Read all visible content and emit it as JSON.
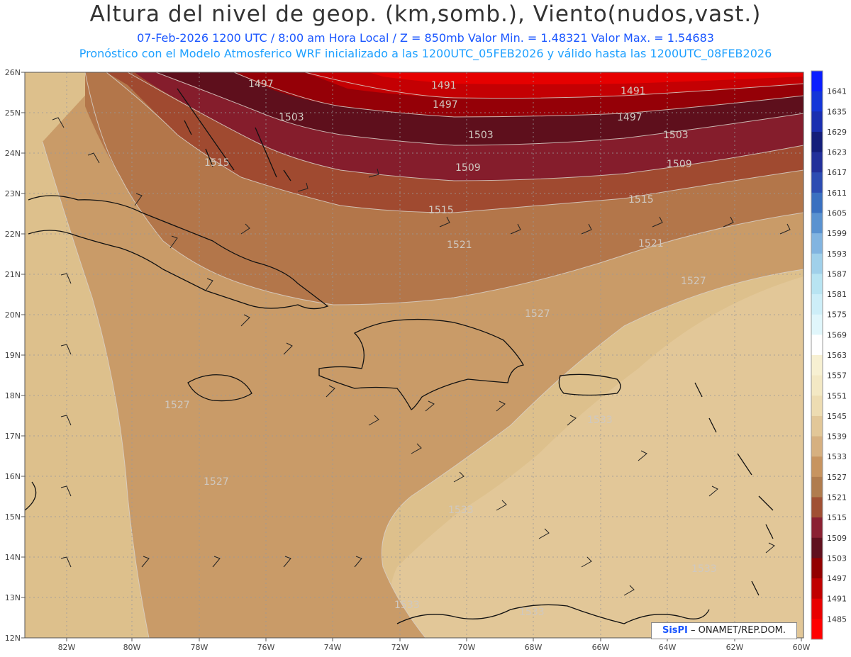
{
  "header": {
    "title": "Altura del nivel de geop. (km,somb.), Viento(nudos,vast.)",
    "line1": "07-Feb-2026  1200 UTC / 8:00 am Hora Local / Z = 850mb     Valor Min. = 1.48321  Valor Max. = 1.54683",
    "line2": "Pronóstico con el Modelo Atmosferico WRF inicializado a las 1200UTC_05FEB2026 y válido hasta las  1200UTC_08FEB2026"
  },
  "axes": {
    "lat_labels": [
      "26N",
      "25N",
      "24N",
      "23N",
      "22N",
      "21N",
      "20N",
      "19N",
      "18N",
      "17N",
      "16N",
      "15N",
      "14N",
      "13N",
      "12N"
    ],
    "lon_labels": [
      "82W",
      "80W",
      "78W",
      "76W",
      "74W",
      "72W",
      "70W",
      "68W",
      "66W",
      "64W",
      "62W",
      "60W"
    ]
  },
  "colorbar": {
    "labels": [
      "1641",
      "1635",
      "1629",
      "1623",
      "1617",
      "1611",
      "1605",
      "1599",
      "1593",
      "1587",
      "1581",
      "1575",
      "1569",
      "1563",
      "1557",
      "1551",
      "1545",
      "1539",
      "1533",
      "1527",
      "1521",
      "1515",
      "1509",
      "1503",
      "1497",
      "1491",
      "1485"
    ],
    "colors": [
      "#0a1eff",
      "#1436d8",
      "#1a2fb0",
      "#141e7a",
      "#22309a",
      "#2c4cb2",
      "#3a70c0",
      "#5a92d0",
      "#82b4e0",
      "#a0d0ea",
      "#b8e4f2",
      "#cdeef8",
      "#e0f6fb",
      "#ffffff",
      "#f7f0d2",
      "#f3e8c4",
      "#eddcb2",
      "#e2c798",
      "#d6b080",
      "#c79460",
      "#b07c4e",
      "#a05034",
      "#8a2032",
      "#60101e",
      "#920000",
      "#c00000",
      "#e80000",
      "#ff0000"
    ]
  },
  "contour_labels": [
    {
      "text": "1497"
    },
    {
      "text": "1491"
    },
    {
      "text": "1491"
    },
    {
      "text": "1497"
    },
    {
      "text": "1497"
    },
    {
      "text": "1503"
    },
    {
      "text": "1503"
    },
    {
      "text": "1503"
    },
    {
      "text": "1509"
    },
    {
      "text": "1509"
    },
    {
      "text": "1515"
    },
    {
      "text": "1515"
    },
    {
      "text": "1515"
    },
    {
      "text": "1521"
    },
    {
      "text": "1521"
    },
    {
      "text": "1527"
    },
    {
      "text": "1527"
    },
    {
      "text": "1527"
    },
    {
      "text": "1527"
    },
    {
      "text": "1533"
    },
    {
      "text": "1533"
    },
    {
      "text": "1533"
    },
    {
      "text": "1533"
    },
    {
      "text": "1533"
    }
  ],
  "footer": {
    "brand": "SisPI",
    "credit": "ONAMET/REP.DOM."
  }
}
